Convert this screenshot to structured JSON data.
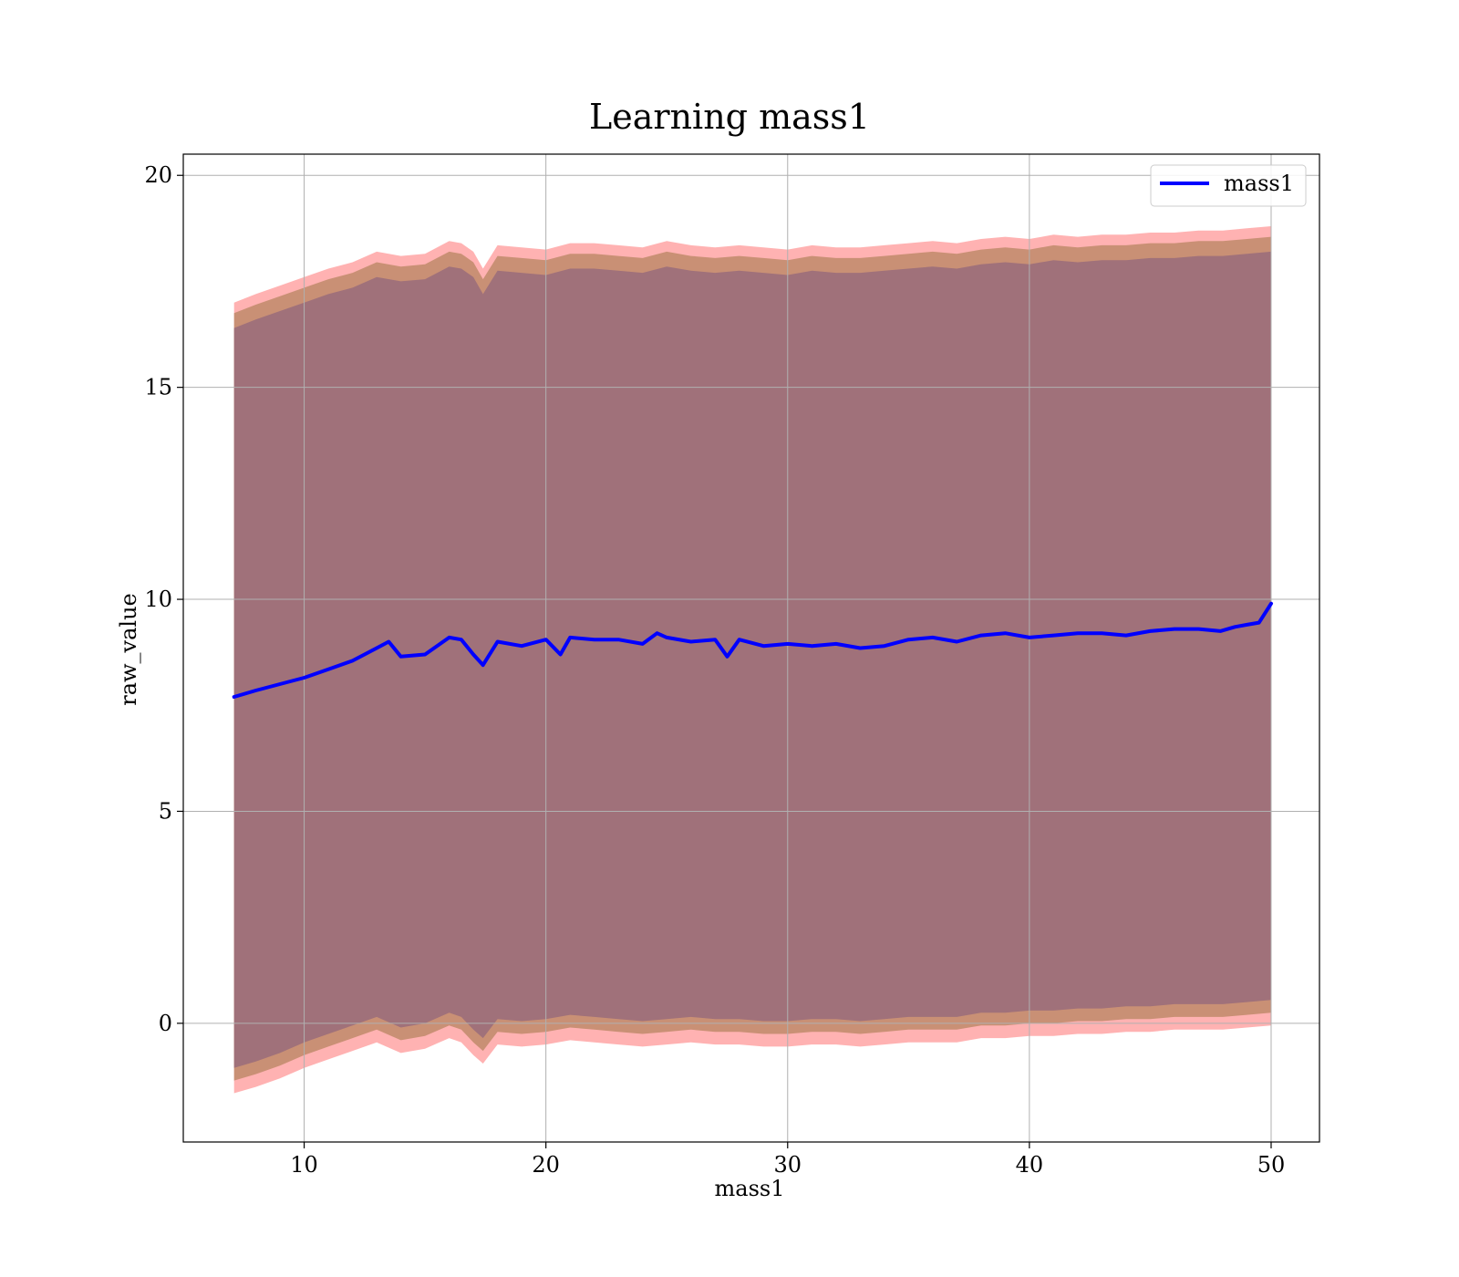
{
  "chart_data": {
    "type": "line",
    "title": "Learning mass1",
    "xlabel": "mass1",
    "ylabel": "raw_value",
    "xlim": [
      5,
      52
    ],
    "ylim": [
      -2.8,
      20.5
    ],
    "xticks": [
      10,
      20,
      30,
      40,
      50
    ],
    "yticks": [
      0,
      5,
      10,
      15,
      20
    ],
    "grid": true,
    "legend": {
      "position": "top-right"
    },
    "colors": {
      "line": "#0000ff",
      "band_outer": "#ff7f7f",
      "band_middle": "#c08a6a",
      "band_inner": "#a0717a",
      "grid": "#b0b0b0"
    },
    "series": [
      {
        "name": "mass1",
        "x": [
          7.1,
          8,
          9,
          10,
          11,
          12,
          13,
          13.5,
          14,
          15,
          16,
          16.5,
          17,
          17.4,
          18,
          19,
          20,
          20.6,
          21,
          22,
          23,
          24,
          24.6,
          25,
          26,
          27,
          27.5,
          28,
          29,
          30,
          31,
          32,
          33,
          34,
          35,
          36,
          37,
          38,
          39,
          40,
          41,
          42,
          43,
          44,
          45,
          46,
          47,
          47.9,
          48.5,
          49,
          49.5,
          50
        ],
        "values": [
          7.7,
          7.85,
          8.0,
          8.15,
          8.35,
          8.55,
          8.85,
          9.0,
          8.65,
          8.7,
          9.1,
          9.05,
          8.7,
          8.45,
          9.0,
          8.9,
          9.05,
          8.7,
          9.1,
          9.05,
          9.05,
          8.95,
          9.2,
          9.1,
          9.0,
          9.05,
          8.65,
          9.05,
          8.9,
          8.95,
          8.9,
          8.95,
          8.85,
          8.9,
          9.05,
          9.1,
          9.0,
          9.15,
          9.2,
          9.1,
          9.15,
          9.2,
          9.2,
          9.15,
          9.25,
          9.3,
          9.3,
          9.25,
          9.35,
          9.4,
          9.45,
          9.9
        ]
      }
    ],
    "bands": [
      {
        "role": "outer",
        "x": [
          7.1,
          8,
          9,
          10,
          11,
          12,
          13,
          14,
          15,
          16,
          16.5,
          17,
          17.4,
          18,
          19,
          20,
          21,
          22,
          23,
          24,
          25,
          26,
          27,
          28,
          29,
          30,
          31,
          32,
          33,
          34,
          35,
          36,
          37,
          38,
          39,
          40,
          41,
          42,
          43,
          44,
          45,
          46,
          47,
          48,
          49,
          50
        ],
        "upper": [
          17.0,
          17.2,
          17.4,
          17.6,
          17.8,
          17.95,
          18.2,
          18.1,
          18.15,
          18.45,
          18.4,
          18.2,
          17.8,
          18.35,
          18.3,
          18.25,
          18.4,
          18.4,
          18.35,
          18.3,
          18.45,
          18.35,
          18.3,
          18.35,
          18.3,
          18.25,
          18.35,
          18.3,
          18.3,
          18.35,
          18.4,
          18.45,
          18.4,
          18.5,
          18.55,
          18.5,
          18.6,
          18.55,
          18.6,
          18.6,
          18.65,
          18.65,
          18.7,
          18.7,
          18.75,
          18.8
        ],
        "lower": [
          -1.65,
          -1.5,
          -1.3,
          -1.05,
          -0.85,
          -0.65,
          -0.45,
          -0.7,
          -0.6,
          -0.35,
          -0.45,
          -0.75,
          -0.95,
          -0.5,
          -0.55,
          -0.5,
          -0.4,
          -0.45,
          -0.5,
          -0.55,
          -0.5,
          -0.45,
          -0.5,
          -0.5,
          -0.55,
          -0.55,
          -0.5,
          -0.5,
          -0.55,
          -0.5,
          -0.45,
          -0.45,
          -0.45,
          -0.35,
          -0.35,
          -0.3,
          -0.3,
          -0.25,
          -0.25,
          -0.2,
          -0.2,
          -0.15,
          -0.15,
          -0.15,
          -0.1,
          -0.05
        ]
      },
      {
        "role": "middle",
        "x": [
          7.1,
          8,
          9,
          10,
          11,
          12,
          13,
          14,
          15,
          16,
          16.5,
          17,
          17.4,
          18,
          19,
          20,
          21,
          22,
          23,
          24,
          25,
          26,
          27,
          28,
          29,
          30,
          31,
          32,
          33,
          34,
          35,
          36,
          37,
          38,
          39,
          40,
          41,
          42,
          43,
          44,
          45,
          46,
          47,
          48,
          49,
          50
        ],
        "upper": [
          16.75,
          16.95,
          17.15,
          17.35,
          17.55,
          17.7,
          17.95,
          17.85,
          17.9,
          18.2,
          18.15,
          17.95,
          17.55,
          18.1,
          18.05,
          18.0,
          18.15,
          18.15,
          18.1,
          18.05,
          18.2,
          18.1,
          18.05,
          18.1,
          18.05,
          18.0,
          18.1,
          18.05,
          18.05,
          18.1,
          18.15,
          18.2,
          18.15,
          18.25,
          18.3,
          18.25,
          18.35,
          18.3,
          18.35,
          18.35,
          18.4,
          18.4,
          18.45,
          18.45,
          18.5,
          18.55
        ],
        "lower": [
          -1.35,
          -1.2,
          -1.0,
          -0.75,
          -0.55,
          -0.35,
          -0.15,
          -0.4,
          -0.3,
          -0.05,
          -0.15,
          -0.45,
          -0.65,
          -0.2,
          -0.25,
          -0.2,
          -0.1,
          -0.15,
          -0.2,
          -0.25,
          -0.2,
          -0.15,
          -0.2,
          -0.2,
          -0.25,
          -0.25,
          -0.2,
          -0.2,
          -0.25,
          -0.2,
          -0.15,
          -0.15,
          -0.15,
          -0.05,
          -0.05,
          0.0,
          0.0,
          0.05,
          0.05,
          0.1,
          0.1,
          0.15,
          0.15,
          0.15,
          0.2,
          0.25
        ]
      },
      {
        "role": "inner",
        "x": [
          7.1,
          8,
          9,
          10,
          11,
          12,
          13,
          14,
          15,
          16,
          16.5,
          17,
          17.4,
          18,
          19,
          20,
          21,
          22,
          23,
          24,
          25,
          26,
          27,
          28,
          29,
          30,
          31,
          32,
          33,
          34,
          35,
          36,
          37,
          38,
          39,
          40,
          41,
          42,
          43,
          44,
          45,
          46,
          47,
          48,
          49,
          50
        ],
        "upper": [
          16.4,
          16.6,
          16.8,
          17.0,
          17.2,
          17.35,
          17.6,
          17.5,
          17.55,
          17.85,
          17.8,
          17.6,
          17.2,
          17.75,
          17.7,
          17.65,
          17.8,
          17.8,
          17.75,
          17.7,
          17.85,
          17.75,
          17.7,
          17.75,
          17.7,
          17.65,
          17.75,
          17.7,
          17.7,
          17.75,
          17.8,
          17.85,
          17.8,
          17.9,
          17.95,
          17.9,
          18.0,
          17.95,
          18.0,
          18.0,
          18.05,
          18.05,
          18.1,
          18.1,
          18.15,
          18.2
        ],
        "lower": [
          -1.05,
          -0.9,
          -0.7,
          -0.45,
          -0.25,
          -0.05,
          0.15,
          -0.1,
          0.0,
          0.25,
          0.15,
          -0.15,
          -0.35,
          0.1,
          0.05,
          0.1,
          0.2,
          0.15,
          0.1,
          0.05,
          0.1,
          0.15,
          0.1,
          0.1,
          0.05,
          0.05,
          0.1,
          0.1,
          0.05,
          0.1,
          0.15,
          0.15,
          0.15,
          0.25,
          0.25,
          0.3,
          0.3,
          0.35,
          0.35,
          0.4,
          0.4,
          0.45,
          0.45,
          0.45,
          0.5,
          0.55
        ]
      }
    ]
  }
}
